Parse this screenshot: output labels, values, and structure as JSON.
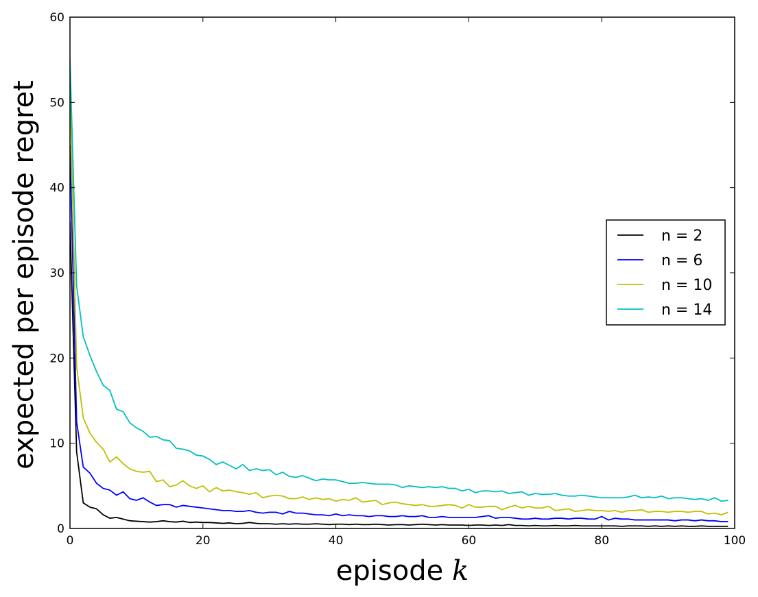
{
  "chart_data": {
    "type": "line",
    "title": "",
    "xlabel_text": "episode ",
    "xlabel_var": "k",
    "ylabel": "expected per episode regret",
    "xlim": [
      0,
      100
    ],
    "ylim": [
      0,
      60
    ],
    "xticks": [
      0,
      20,
      40,
      60,
      80,
      100
    ],
    "yticks": [
      0,
      10,
      20,
      30,
      40,
      50,
      60
    ],
    "grid": false,
    "legend_position": "center-right",
    "series": [
      {
        "name": "n = 2",
        "color": "#000000",
        "values": [
          36.0,
          9.0,
          3.0,
          2.5,
          2.3,
          1.6,
          1.2,
          1.3,
          1.1,
          0.9,
          0.85,
          0.8,
          0.75,
          0.8,
          0.9,
          0.8,
          0.75,
          0.85,
          0.7,
          0.75,
          0.7,
          0.7,
          0.65,
          0.6,
          0.65,
          0.55,
          0.6,
          0.7,
          0.6,
          0.55,
          0.55,
          0.5,
          0.55,
          0.5,
          0.55,
          0.5,
          0.5,
          0.55,
          0.5,
          0.45,
          0.5,
          0.5,
          0.45,
          0.5,
          0.45,
          0.45,
          0.5,
          0.45,
          0.4,
          0.45,
          0.45,
          0.4,
          0.45,
          0.5,
          0.45,
          0.4,
          0.45,
          0.4,
          0.4,
          0.4,
          0.35,
          0.4,
          0.4,
          0.35,
          0.4,
          0.35,
          0.45,
          0.35,
          0.35,
          0.3,
          0.35,
          0.3,
          0.3,
          0.35,
          0.3,
          0.3,
          0.35,
          0.3,
          0.3,
          0.3,
          0.3,
          0.3,
          0.3,
          0.25,
          0.3,
          0.3,
          0.3,
          0.25,
          0.3,
          0.25,
          0.3,
          0.25,
          0.3,
          0.25,
          0.25,
          0.3,
          0.25,
          0.25,
          0.25,
          0.25
        ]
      },
      {
        "name": "n = 6",
        "color": "#0000ff",
        "values": [
          45.0,
          12.5,
          7.2,
          6.5,
          5.3,
          4.7,
          4.5,
          3.9,
          4.3,
          3.5,
          3.3,
          3.6,
          3.1,
          2.7,
          2.8,
          2.8,
          2.5,
          2.7,
          2.6,
          2.5,
          2.4,
          2.3,
          2.2,
          2.1,
          2.1,
          2.0,
          2.0,
          2.1,
          1.9,
          1.8,
          1.9,
          1.9,
          1.7,
          2.0,
          1.8,
          1.8,
          1.7,
          1.6,
          1.6,
          1.5,
          1.7,
          1.5,
          1.6,
          1.5,
          1.5,
          1.4,
          1.5,
          1.5,
          1.4,
          1.4,
          1.5,
          1.4,
          1.4,
          1.5,
          1.3,
          1.3,
          1.4,
          1.3,
          1.3,
          1.3,
          1.3,
          1.3,
          1.4,
          1.5,
          1.2,
          1.3,
          1.3,
          1.2,
          1.1,
          1.1,
          1.2,
          1.1,
          1.1,
          1.2,
          1.2,
          1.1,
          1.2,
          1.2,
          1.1,
          1.1,
          1.4,
          1.0,
          1.2,
          1.1,
          1.1,
          1.0,
          1.0,
          1.0,
          1.0,
          1.0,
          1.0,
          0.9,
          1.0,
          1.0,
          0.9,
          1.0,
          0.9,
          0.9,
          0.8,
          0.8
        ]
      },
      {
        "name": "n = 10",
        "color": "#bfbf00",
        "values": [
          52.0,
          19.0,
          13.0,
          11.2,
          10.1,
          9.3,
          7.8,
          8.4,
          7.6,
          7.0,
          6.7,
          6.6,
          6.7,
          5.5,
          5.7,
          4.9,
          5.1,
          5.6,
          5.0,
          4.7,
          5.0,
          4.3,
          4.8,
          4.4,
          4.5,
          4.3,
          4.2,
          4.0,
          4.2,
          3.6,
          3.8,
          3.9,
          3.8,
          3.5,
          3.5,
          3.7,
          3.4,
          3.6,
          3.4,
          3.5,
          3.2,
          3.4,
          3.3,
          3.6,
          3.1,
          3.2,
          3.3,
          2.8,
          3.0,
          3.1,
          2.9,
          2.8,
          2.7,
          2.8,
          2.6,
          2.6,
          2.7,
          2.8,
          2.7,
          2.4,
          2.8,
          2.5,
          2.5,
          2.6,
          2.6,
          2.2,
          2.5,
          2.7,
          2.4,
          2.6,
          2.4,
          2.4,
          2.6,
          2.1,
          2.2,
          2.3,
          2.0,
          2.1,
          2.2,
          2.1,
          2.1,
          2.0,
          2.1,
          1.9,
          2.1,
          2.1,
          2.2,
          1.9,
          2.0,
          2.0,
          1.9,
          2.0,
          2.0,
          1.9,
          2.0,
          2.0,
          1.7,
          1.8,
          1.6,
          1.9
        ]
      },
      {
        "name": "n = 14",
        "color": "#00bfbf",
        "values": [
          55.0,
          28.5,
          22.5,
          20.3,
          18.4,
          16.8,
          16.2,
          14.0,
          13.7,
          12.4,
          11.8,
          11.4,
          10.7,
          10.8,
          10.4,
          10.3,
          9.4,
          9.3,
          9.1,
          8.6,
          8.5,
          8.1,
          7.5,
          7.8,
          7.4,
          7.0,
          7.5,
          6.8,
          7.0,
          6.8,
          6.9,
          6.3,
          6.6,
          6.1,
          6.0,
          6.2,
          5.9,
          5.6,
          5.8,
          5.7,
          5.7,
          5.5,
          5.3,
          5.3,
          5.4,
          5.3,
          5.2,
          5.2,
          5.2,
          5.1,
          4.8,
          5.0,
          4.9,
          4.8,
          4.9,
          4.8,
          4.9,
          4.7,
          4.7,
          4.4,
          4.6,
          4.2,
          4.4,
          4.4,
          4.3,
          4.4,
          4.1,
          4.2,
          4.3,
          3.9,
          4.1,
          4.0,
          4.0,
          4.1,
          3.9,
          3.8,
          3.8,
          3.9,
          3.8,
          3.7,
          3.6,
          3.6,
          3.6,
          3.6,
          3.7,
          3.9,
          3.6,
          3.7,
          3.6,
          3.8,
          3.5,
          3.6,
          3.6,
          3.5,
          3.4,
          3.5,
          3.3,
          3.6,
          3.2,
          3.3
        ]
      }
    ]
  }
}
